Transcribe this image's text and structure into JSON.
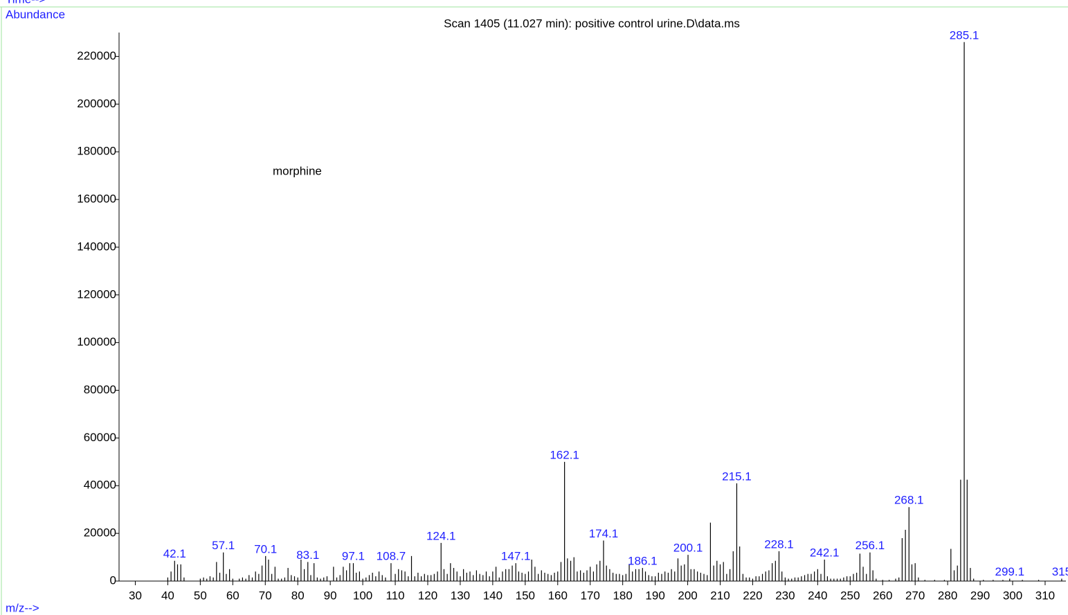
{
  "window_label": "Time-->",
  "chart_data": {
    "type": "stick",
    "title": "Scan 1405 (11.027 min): positive control urine.D\\data.ms",
    "y_label": "Abundance",
    "x_label": "m/z-->",
    "annotation": "morphine",
    "color": "#000000",
    "label_color": "#1f1fff",
    "xlim": [
      25,
      316.4
    ],
    "ylim": [
      0,
      230000
    ],
    "xticks": [
      30,
      40,
      50,
      60,
      70,
      80,
      90,
      100,
      110,
      120,
      130,
      140,
      150,
      160,
      170,
      180,
      190,
      200,
      210,
      220,
      230,
      240,
      250,
      260,
      270,
      280,
      290,
      300,
      310
    ],
    "yticks": [
      0,
      20000,
      40000,
      60000,
      80000,
      100000,
      120000,
      140000,
      160000,
      180000,
      200000,
      220000
    ],
    "x": [
      40,
      41,
      42.1,
      43,
      44,
      45,
      50,
      51,
      52,
      53,
      54,
      55,
      56,
      57.1,
      58,
      59,
      60,
      62,
      63,
      64,
      65,
      66,
      67,
      68,
      69,
      70.1,
      71,
      72,
      73,
      74,
      75,
      76,
      77,
      78,
      79,
      80,
      81,
      82,
      83.1,
      84,
      85,
      86,
      87,
      88,
      89,
      91,
      92,
      93,
      94,
      95,
      96,
      97.1,
      98,
      99,
      100,
      101,
      102,
      103,
      104,
      105,
      106,
      107,
      108.7,
      110,
      111,
      112,
      113,
      114,
      115,
      116,
      117,
      118,
      119,
      120,
      121,
      122,
      123,
      124.1,
      125,
      126,
      127,
      128,
      129,
      130,
      131,
      132,
      133,
      134,
      135,
      136,
      137,
      138,
      139,
      140,
      141,
      142,
      143,
      144,
      145,
      146,
      147.1,
      148,
      149,
      150,
      151,
      152,
      153,
      154,
      155,
      156,
      157,
      158,
      159,
      160,
      161,
      162.1,
      163,
      164,
      165,
      166,
      167,
      168,
      169,
      170,
      171,
      172,
      173,
      174.1,
      175,
      176,
      177,
      178,
      179,
      180,
      181,
      182,
      183,
      184,
      185,
      186.1,
      187,
      188,
      189,
      190,
      191,
      192,
      193,
      194,
      195,
      196,
      197,
      198,
      199,
      200.1,
      201,
      202,
      203,
      204,
      205,
      206,
      207,
      208,
      209,
      210,
      211,
      212,
      213,
      214,
      215.1,
      216,
      217,
      218,
      219,
      220,
      221,
      222,
      223,
      224,
      225,
      226,
      227,
      228.1,
      229,
      230,
      231,
      232,
      233,
      234,
      235,
      236,
      237,
      238,
      239,
      240,
      241,
      242.1,
      243,
      244,
      245,
      246,
      247,
      248,
      249,
      250,
      251,
      252,
      253,
      254,
      255,
      256.1,
      257,
      258,
      260,
      262,
      264,
      265,
      266,
      267,
      268.1,
      269,
      270,
      271,
      273,
      276,
      279,
      281,
      282,
      283,
      284,
      285.1,
      286,
      287,
      288,
      291,
      294,
      297,
      299.1,
      303,
      308,
      315.1
    ],
    "values": [
      1500,
      4000,
      8500,
      7000,
      7000,
      1500,
      1000,
      1500,
      1000,
      2000,
      1500,
      8000,
      3500,
      12000,
      3000,
      5000,
      1000,
      1000,
      1500,
      1000,
      2500,
      1500,
      4000,
      3000,
      6500,
      10500,
      9000,
      3000,
      6000,
      1000,
      1000,
      1500,
      5500,
      2500,
      2000,
      1500,
      9000,
      5000,
      8000,
      2500,
      7500,
      1500,
      1000,
      1500,
      2000,
      6000,
      1500,
      2500,
      6000,
      4500,
      7500,
      7500,
      3500,
      4000,
      1000,
      1500,
      2500,
      3500,
      2000,
      4000,
      2500,
      1500,
      7500,
      3000,
      5000,
      4500,
      4000,
      2000,
      10500,
      2000,
      3500,
      2000,
      3000,
      2500,
      2500,
      3000,
      4000,
      16000,
      5000,
      3000,
      7500,
      5500,
      4000,
      2000,
      5000,
      3500,
      4000,
      2500,
      4500,
      3000,
      2500,
      4000,
      2000,
      4000,
      6000,
      1500,
      4000,
      5000,
      5000,
      6500,
      7500,
      4000,
      3500,
      3000,
      4000,
      9000,
      6000,
      3000,
      4500,
      3500,
      3000,
      2500,
      3500,
      4000,
      8000,
      50000,
      9500,
      8500,
      10000,
      4000,
      4500,
      3500,
      4500,
      6000,
      4000,
      7000,
      8500,
      17000,
      6500,
      5000,
      3500,
      3000,
      3000,
      2500,
      3000,
      7000,
      4000,
      5000,
      5000,
      5500,
      4000,
      2500,
      2000,
      2000,
      3500,
      3000,
      4000,
      3500,
      5000,
      4000,
      9500,
      6500,
      7000,
      11000,
      5000,
      5000,
      4000,
      3500,
      3000,
      2500,
      24500,
      6500,
      8500,
      7000,
      8000,
      3000,
      5000,
      12500,
      41000,
      14500,
      3000,
      1500,
      1500,
      1000,
      2000,
      2000,
      3000,
      4000,
      4500,
      7500,
      8500,
      12500,
      4000,
      1500,
      1000,
      1000,
      1500,
      1500,
      2000,
      2500,
      3000,
      3000,
      4000,
      5000,
      3000,
      9000,
      2000,
      1000,
      1000,
      1000,
      1000,
      1500,
      2000,
      2000,
      3000,
      3500,
      11500,
      6000,
      3000,
      12000,
      4500,
      1000,
      500,
      500,
      1000,
      1500,
      18000,
      21500,
      31000,
      7000,
      7500,
      1500,
      500,
      500,
      500,
      13500,
      4500,
      6500,
      42500,
      226000,
      42500,
      5500,
      1000,
      500,
      500,
      500,
      1000,
      500,
      500,
      1000
    ],
    "peak_labels": [
      null,
      null,
      "42.1",
      null,
      null,
      null,
      null,
      null,
      null,
      null,
      null,
      null,
      null,
      "57.1",
      null,
      null,
      null,
      null,
      null,
      null,
      null,
      null,
      null,
      null,
      null,
      "70.1",
      null,
      null,
      null,
      null,
      null,
      null,
      null,
      null,
      null,
      null,
      null,
      null,
      "83.1",
      null,
      null,
      null,
      null,
      null,
      null,
      null,
      null,
      null,
      null,
      null,
      null,
      "97.1",
      null,
      null,
      null,
      null,
      null,
      null,
      null,
      null,
      null,
      null,
      "108.7",
      null,
      null,
      null,
      null,
      null,
      null,
      null,
      null,
      null,
      null,
      null,
      null,
      null,
      null,
      "124.1",
      null,
      null,
      null,
      null,
      null,
      null,
      null,
      null,
      null,
      null,
      null,
      null,
      null,
      null,
      null,
      null,
      null,
      null,
      null,
      null,
      null,
      null,
      "147.1",
      null,
      null,
      null,
      null,
      null,
      null,
      null,
      null,
      null,
      null,
      null,
      null,
      null,
      null,
      "162.1",
      null,
      null,
      null,
      null,
      null,
      null,
      null,
      null,
      null,
      null,
      null,
      "174.1",
      null,
      null,
      null,
      null,
      null,
      null,
      null,
      null,
      null,
      null,
      null,
      "186.1",
      null,
      null,
      null,
      null,
      null,
      null,
      null,
      null,
      null,
      null,
      null,
      null,
      null,
      "200.1",
      null,
      null,
      null,
      null,
      null,
      null,
      null,
      null,
      null,
      null,
      null,
      null,
      null,
      null,
      "215.1",
      null,
      null,
      null,
      null,
      null,
      null,
      null,
      null,
      null,
      null,
      null,
      null,
      "228.1",
      null,
      null,
      null,
      null,
      null,
      null,
      null,
      null,
      null,
      null,
      null,
      null,
      null,
      "242.1",
      null,
      null,
      null,
      null,
      null,
      null,
      null,
      null,
      null,
      null,
      null,
      null,
      null,
      "256.1",
      null,
      null,
      null,
      null,
      null,
      null,
      null,
      null,
      "268.1",
      null,
      null,
      null,
      null,
      null,
      null,
      null,
      null,
      null,
      null,
      "285.1",
      null,
      null,
      null,
      null,
      null,
      null,
      "299.1",
      null,
      null,
      "315"
    ]
  }
}
